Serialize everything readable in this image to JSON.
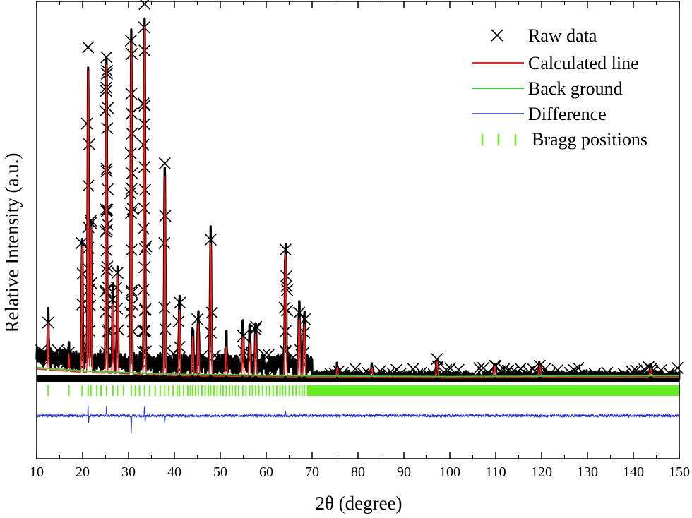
{
  "chart_data": {
    "type": "line",
    "xlabel": "2θ (degree)",
    "ylabel": "Relative Intensity (a.u.)",
    "xlim": [
      10,
      150
    ],
    "x_ticks": [
      "10",
      "20",
      "30",
      "40",
      "50",
      "60",
      "70",
      "80",
      "90",
      "100",
      "110",
      "120",
      "130",
      "140",
      "150"
    ],
    "y_ticks": [],
    "grid": false,
    "legend_placement": "top-right",
    "colors": {
      "raw": "#000000",
      "calculated": "#ff2020",
      "background": "#33cc33",
      "difference": "#2233dd",
      "bragg": "#66ee22"
    },
    "series": [
      {
        "name": "Raw data",
        "marker": "x",
        "peak_markers": [
          {
            "x": 12.5,
            "y": 0.17
          },
          {
            "x": 17.0,
            "y": 0.08
          },
          {
            "x": 19.8,
            "y": 0.41
          },
          {
            "x": 21.2,
            "y": 1.0
          },
          {
            "x": 21.8,
            "y": 0.47
          },
          {
            "x": 25.2,
            "y": 0.97
          },
          {
            "x": 25.3,
            "y": 0.92
          },
          {
            "x": 25.4,
            "y": 0.51
          },
          {
            "x": 26.5,
            "y": 0.24
          },
          {
            "x": 27.6,
            "y": 0.32
          },
          {
            "x": 30.5,
            "y": 1.02
          },
          {
            "x": 30.7,
            "y": 0.8
          },
          {
            "x": 33.4,
            "y": 1.06
          },
          {
            "x": 33.5,
            "y": 0.99
          },
          {
            "x": 33.6,
            "y": 0.57
          },
          {
            "x": 37.9,
            "y": 0.65
          },
          {
            "x": 41.2,
            "y": 0.23
          },
          {
            "x": 45.0,
            "y": 0.18
          },
          {
            "x": 47.9,
            "y": 0.42
          },
          {
            "x": 55.0,
            "y": 0.13
          },
          {
            "x": 57.6,
            "y": 0.15
          },
          {
            "x": 64.2,
            "y": 0.39
          },
          {
            "x": 64.4,
            "y": 0.31
          },
          {
            "x": 67.2,
            "y": 0.2
          },
          {
            "x": 68.4,
            "y": 0.18
          },
          {
            "x": 97.2,
            "y": 0.06
          },
          {
            "x": 109.8,
            "y": 0.04
          },
          {
            "x": 119.6,
            "y": 0.04
          },
          {
            "x": 143.8,
            "y": 0.03
          }
        ]
      },
      {
        "name": "Calculated line",
        "peaks": [
          {
            "x": 12.5,
            "y": 0.14
          },
          {
            "x": 17.0,
            "y": 0.05
          },
          {
            "x": 19.9,
            "y": 0.38
          },
          {
            "x": 21.2,
            "y": 0.91
          },
          {
            "x": 21.8,
            "y": 0.44
          },
          {
            "x": 25.2,
            "y": 0.93
          },
          {
            "x": 26.6,
            "y": 0.21
          },
          {
            "x": 27.6,
            "y": 0.3
          },
          {
            "x": 30.6,
            "y": 1.0
          },
          {
            "x": 33.5,
            "y": 1.05
          },
          {
            "x": 37.9,
            "y": 0.6
          },
          {
            "x": 41.1,
            "y": 0.2
          },
          {
            "x": 44.0,
            "y": 0.12
          },
          {
            "x": 45.2,
            "y": 0.16
          },
          {
            "x": 47.9,
            "y": 0.4
          },
          {
            "x": 51.3,
            "y": 0.09
          },
          {
            "x": 54.9,
            "y": 0.12
          },
          {
            "x": 56.4,
            "y": 0.1
          },
          {
            "x": 57.7,
            "y": 0.13
          },
          {
            "x": 64.2,
            "y": 0.37
          },
          {
            "x": 67.2,
            "y": 0.18
          },
          {
            "x": 68.3,
            "y": 0.16
          },
          {
            "x": 75.5,
            "y": 0.03
          },
          {
            "x": 83.0,
            "y": 0.03
          },
          {
            "x": 97.2,
            "y": 0.05
          },
          {
            "x": 109.8,
            "y": 0.035
          },
          {
            "x": 119.6,
            "y": 0.035
          },
          {
            "x": 143.8,
            "y": 0.025
          }
        ]
      },
      {
        "name": "Back ground",
        "x": [
          10,
          20,
          40,
          70,
          100,
          150
        ],
        "values": [
          0.03,
          0.02,
          0.01,
          0.005,
          0.003,
          0.006
        ]
      },
      {
        "name": "Difference",
        "baseline": 0,
        "spikes": [
          {
            "x": 21.2,
            "y": 0.06
          },
          {
            "x": 21.3,
            "y": -0.05
          },
          {
            "x": 25.2,
            "y": 0.04
          },
          {
            "x": 30.6,
            "y": -0.08
          },
          {
            "x": 33.5,
            "y": 0.05
          },
          {
            "x": 33.6,
            "y": -0.04
          },
          {
            "x": 37.9,
            "y": -0.03
          },
          {
            "x": 64.2,
            "y": 0.02
          }
        ]
      },
      {
        "name": "Bragg positions",
        "marker": "tick",
        "positions": [
          12.5,
          17.0,
          19.9,
          21.2,
          21.8,
          23.1,
          24.0,
          25.2,
          26.6,
          27.6,
          28.9,
          30.6,
          31.5,
          32.4,
          33.5,
          34.6,
          35.8,
          36.9,
          37.9,
          38.8,
          39.7,
          40.6,
          41.1,
          42.0,
          42.9,
          43.5,
          44.0,
          44.6,
          45.2,
          46.0,
          46.7,
          47.4,
          47.9,
          48.6,
          49.3,
          50.0,
          50.6,
          51.3,
          52.0,
          52.6,
          53.3,
          54.0,
          54.9,
          55.6,
          56.4,
          57.0,
          57.7,
          58.4,
          59.2,
          60.0,
          60.7,
          61.5,
          62.3,
          63.0,
          63.6,
          64.2,
          65.0,
          65.8,
          66.5,
          67.2,
          67.8,
          68.3,
          69.0
        ],
        "dense_from": 69.0,
        "dense_to": 150.0
      }
    ]
  }
}
